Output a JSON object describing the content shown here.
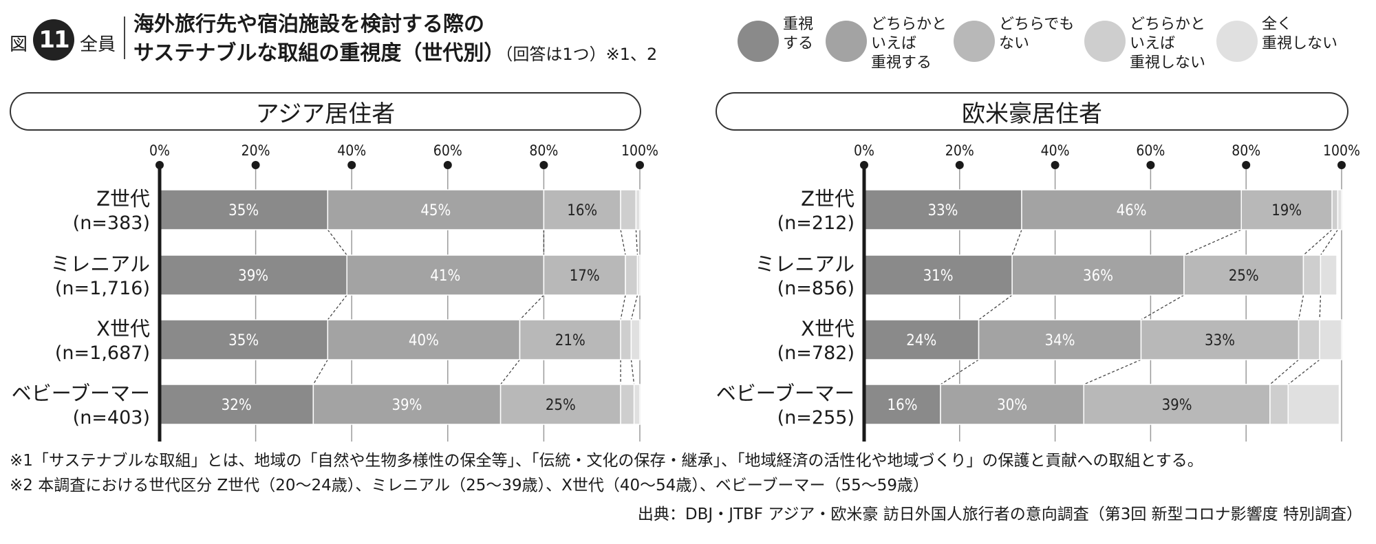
{
  "header": {
    "figure_label": "図",
    "figure_number": "11",
    "target": "全員",
    "title_line1": "海外旅行先や宿泊施設を検討する際の",
    "title_line2": "サステナブルな取組の重視度（世代別）",
    "title_note": "（回答は1つ）※1、2"
  },
  "legend": [
    {
      "label": "重視\nする",
      "color": "#8a8a8a"
    },
    {
      "label": "どちらかと\nいえば\n重視する",
      "color": "#a3a3a3"
    },
    {
      "label": "どちらでも\nない",
      "color": "#b8b8b8"
    },
    {
      "label": "どちらかと\nいえば\n重視しない",
      "color": "#cecece"
    },
    {
      "label": "全く\n重視しない",
      "color": "#e0e0e0"
    }
  ],
  "panels": [
    {
      "title": "アジア居住者"
    },
    {
      "title": "欧米豪居住者"
    }
  ],
  "chart_data": [
    {
      "type": "bar",
      "orientation": "horizontal",
      "stacked": true,
      "title": "アジア居住者",
      "x_ticks": [
        "0%",
        "20%",
        "40%",
        "60%",
        "80%",
        "100%"
      ],
      "xlim": [
        0,
        100
      ],
      "categories": [
        {
          "name": "Z世代",
          "n": "(n=383)"
        },
        {
          "name": "ミレニアル",
          "n": "(n=1,716)"
        },
        {
          "name": "X世代",
          "n": "(n=1,687)"
        },
        {
          "name": "ベビーブーマー",
          "n": "(n=403)"
        }
      ],
      "series": [
        {
          "name": "重視する",
          "values": [
            35,
            39,
            35,
            32
          ],
          "labels": [
            "35%",
            "39%",
            "35%",
            "32%"
          ]
        },
        {
          "name": "どちらかといえば重視する",
          "values": [
            45,
            41,
            40,
            39
          ],
          "labels": [
            "45%",
            "41%",
            "40%",
            "39%"
          ]
        },
        {
          "name": "どちらでもない",
          "values": [
            16,
            17,
            21,
            25
          ],
          "labels": [
            "16%",
            "17%",
            "21%",
            "25%"
          ]
        },
        {
          "name": "どちらかといえば重視しない",
          "values": [
            3.2,
            2.5,
            2.2,
            2.8
          ],
          "labels": [
            "",
            "",
            "",
            ""
          ]
        },
        {
          "name": "全く重視しない",
          "values": [
            0.8,
            0.5,
            1.8,
            1.2
          ],
          "labels": [
            "",
            "",
            "",
            ""
          ]
        }
      ]
    },
    {
      "type": "bar",
      "orientation": "horizontal",
      "stacked": true,
      "title": "欧米豪居住者",
      "x_ticks": [
        "0%",
        "20%",
        "40%",
        "60%",
        "80%",
        "100%"
      ],
      "xlim": [
        0,
        100
      ],
      "categories": [
        {
          "name": "Z世代",
          "n": "(n=212)"
        },
        {
          "name": "ミレニアル",
          "n": "(n=856)"
        },
        {
          "name": "X世代",
          "n": "(n=782)"
        },
        {
          "name": "ベビーブーマー",
          "n": "(n=255)"
        }
      ],
      "series": [
        {
          "name": "重視する",
          "values": [
            33,
            31,
            24,
            16
          ],
          "labels": [
            "33%",
            "31%",
            "24%",
            "16%"
          ]
        },
        {
          "name": "どちらかといえば重視する",
          "values": [
            46,
            36,
            34,
            30
          ],
          "labels": [
            "46%",
            "36%",
            "34%",
            "30%"
          ]
        },
        {
          "name": "どちらでもない",
          "values": [
            19,
            25,
            33,
            39
          ],
          "labels": [
            "19%",
            "25%",
            "33%",
            "39%"
          ]
        },
        {
          "name": "どちらかといえば重視しない",
          "values": [
            1.2,
            3.6,
            4.4,
            3.8
          ],
          "labels": [
            "",
            "",
            "",
            ""
          ]
        },
        {
          "name": "全く重視しない",
          "values": [
            0.8,
            3.4,
            4.6,
            10.7
          ],
          "labels": [
            "",
            "",
            "",
            ""
          ]
        }
      ]
    }
  ],
  "notes": [
    "※1「サステナブルな取組」とは、地域の「自然や生物多様性の保全等」、「伝統・文化の保存・継承」、「地域経済の活性化や地域づくり」の保護と貢献への取組とする。",
    "※2 本調査における世代区分 Z世代（20〜24歳）、ミレニアル（25〜39歳）、X世代（40〜54歳）、ベビーブーマー（55〜59歳）"
  ],
  "source": "出典：DBJ・JTBF アジア・欧米豪 訪日外国人旅行者の意向調査（第3回 新型コロナ影響度 特別調査）"
}
